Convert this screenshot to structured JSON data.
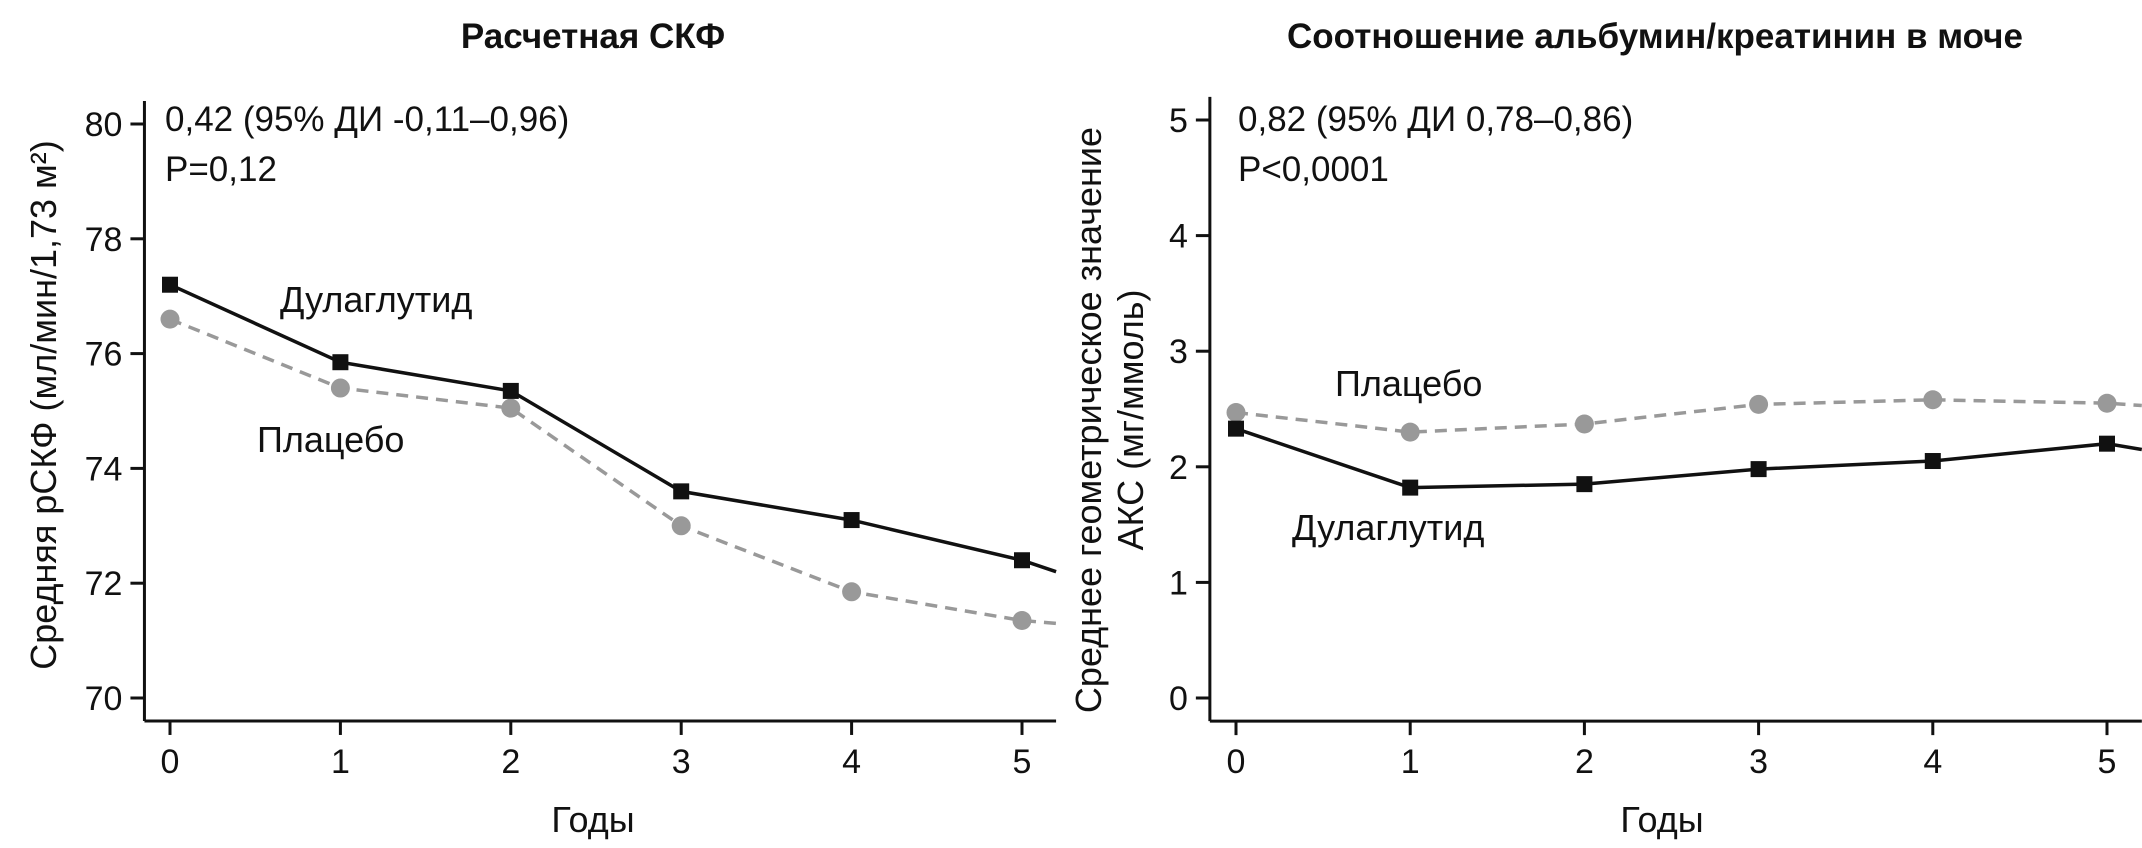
{
  "chart_data": [
    {
      "type": "line",
      "title": "Расчетная СКФ",
      "xlabel": "Годы",
      "ylabel": "Средняя рСКФ (мл/мин/1,73 м²)",
      "ylabel_lines": [
        "Средняя рСКФ (мл/мин/1,73 м²)"
      ],
      "xlim": [
        -0.15,
        5.2
      ],
      "ylim": [
        69.6,
        80.4
      ],
      "x_ticks": [
        0,
        1,
        2,
        3,
        4,
        5
      ],
      "y_ticks": [
        70,
        72,
        74,
        76,
        78,
        80
      ],
      "grid": false,
      "annotations": [
        "0,42 (95% ДИ -0,11–0,96)",
        "P=0,12"
      ],
      "series": [
        {
          "name": "Дулаглутид",
          "style": "solid",
          "marker": "square",
          "color": "#111111",
          "x": [
            0,
            1,
            2,
            3,
            4,
            5
          ],
          "y": [
            77.2,
            75.85,
            75.35,
            73.6,
            73.1,
            72.4
          ],
          "tail_to": [
            5.2,
            72.2
          ]
        },
        {
          "name": "Плацебо",
          "style": "dashed",
          "marker": "circle",
          "color": "#999999",
          "x": [
            0,
            1,
            2,
            3,
            4,
            5
          ],
          "y": [
            76.6,
            75.4,
            75.05,
            73.0,
            71.85,
            71.35
          ],
          "tail_to": [
            5.2,
            71.3
          ]
        }
      ]
    },
    {
      "type": "line",
      "title": "Соотношение альбумин/креатинин в моче",
      "xlabel": "Годы",
      "ylabel": "Среднее геометрическое значение АКС (мг/ммоль)",
      "ylabel_lines": [
        "Среднее геометрическое значение",
        "АКС (мг/ммоль)"
      ],
      "xlim": [
        -0.15,
        5.2
      ],
      "ylim": [
        -0.2,
        5.2
      ],
      "x_ticks": [
        0,
        1,
        2,
        3,
        4,
        5
      ],
      "y_ticks": [
        0,
        1,
        2,
        3,
        4,
        5
      ],
      "grid": false,
      "annotations": [
        "0,82 (95% ДИ 0,78–0,86)",
        "P<0,0001"
      ],
      "series": [
        {
          "name": "Дулаглутид",
          "style": "solid",
          "marker": "square",
          "color": "#111111",
          "x": [
            0,
            1,
            2,
            3,
            4,
            5
          ],
          "y": [
            2.33,
            1.82,
            1.85,
            1.98,
            2.05,
            2.2
          ],
          "tail_to": [
            5.2,
            2.15
          ]
        },
        {
          "name": "Плацебо",
          "style": "dashed",
          "marker": "circle",
          "color": "#999999",
          "x": [
            0,
            1,
            2,
            3,
            4,
            5
          ],
          "y": [
            2.47,
            2.3,
            2.37,
            2.54,
            2.58,
            2.55
          ],
          "tail_to": [
            5.2,
            2.53
          ]
        }
      ]
    }
  ]
}
